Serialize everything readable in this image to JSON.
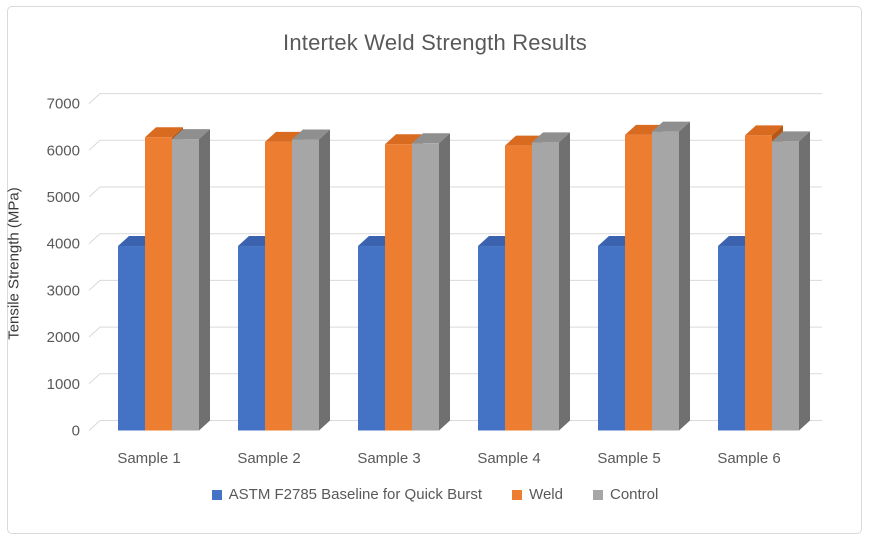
{
  "frame": {
    "background": "#ffffff",
    "border_color": "#d9d9d9"
  },
  "chart_data": {
    "type": "bar",
    "projection": "3d-clustered-column",
    "title": "Intertek Weld Strength Results",
    "xlabel": "",
    "ylabel": "Tensile Strength (MPa)",
    "ylim": [
      0,
      7000
    ],
    "ytick_interval": 1000,
    "yticks": [
      0,
      1000,
      2000,
      3000,
      4000,
      5000,
      6000,
      7000
    ],
    "grid": true,
    "legend_position": "bottom",
    "text_color": "#595959",
    "axis_title_color": "#3a3a3a",
    "gridline_color": "#d9d9d9",
    "categories": [
      "Sample 1",
      "Sample 2",
      "Sample 3",
      "Sample 4",
      "Sample 5",
      "Sample 6"
    ],
    "series": [
      {
        "name": "ASTM F2785 Baseline for Quick Burst",
        "color": "#4472c4",
        "color_top": "#3a62ae",
        "color_side": "#2f5190",
        "values": [
          3950,
          3950,
          3950,
          3950,
          3950,
          3950
        ]
      },
      {
        "name": "Weld",
        "color": "#ed7d31",
        "color_top": "#d96b20",
        "color_side": "#b55614",
        "values": [
          6280,
          6180,
          6130,
          6100,
          6330,
          6320
        ]
      },
      {
        "name": "Control",
        "color": "#a6a6a6",
        "color_top": "#8f8f8f",
        "color_side": "#707070",
        "values": [
          6240,
          6230,
          6150,
          6170,
          6400,
          6190
        ]
      }
    ]
  }
}
